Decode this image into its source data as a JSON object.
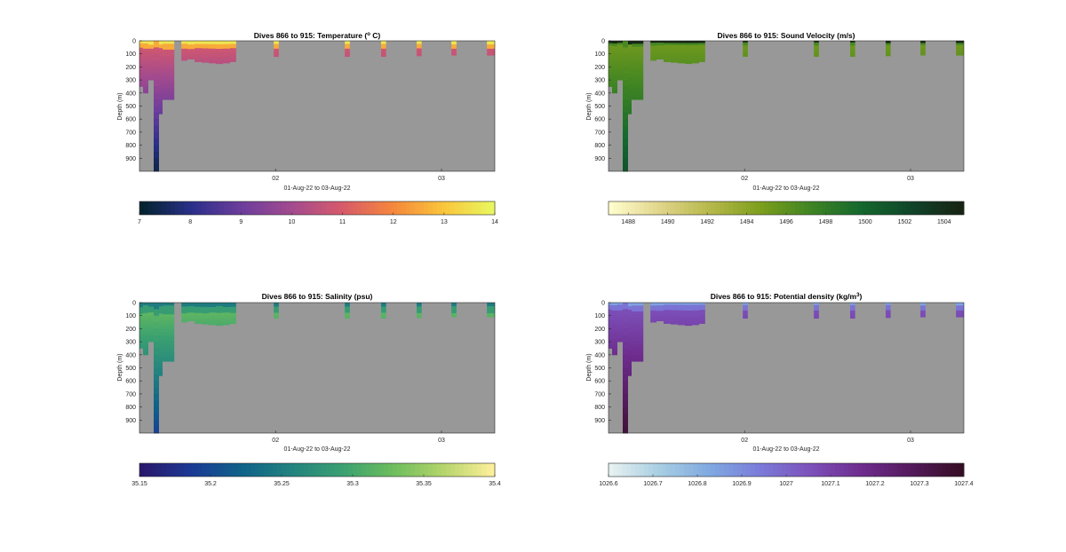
{
  "chart_data": [
    {
      "type": "heatmap",
      "title": "Dives 866 to 915: Temperature (",
      "title_sup": "o",
      "title_end": " C)",
      "xlabel": "01-Aug-22 to 03-Aug-22",
      "ylabel": "Depth (m)",
      "x_ticks": [
        "02",
        "03"
      ],
      "y_ticks": [
        0,
        100,
        200,
        300,
        400,
        500,
        600,
        700,
        800,
        900
      ],
      "ylim": [
        0,
        1000
      ],
      "colormap": "thermal",
      "colorbar_range": [
        7,
        14
      ],
      "colorbar_ticks": [
        7,
        8,
        9,
        10,
        11,
        12,
        13,
        14
      ],
      "background_color": "#989898",
      "surface_value": 13.6,
      "interior_value": 10.4,
      "deep_value": 7.5,
      "casts": [
        {
          "x": 0.05,
          "max_depth": 350,
          "surface": 13.6,
          "mid": 10.2,
          "deep": 9.8
        },
        {
          "x": 0.42,
          "max_depth": 1000,
          "surface": 13.6,
          "mid": 9.8,
          "deep": 7.4
        },
        {
          "x": 1.5,
          "max_depth": 120,
          "surface": 13.8,
          "mid": 11.0,
          "deep": 10.8
        },
        {
          "x": 2.05,
          "max_depth": 120,
          "surface": 13.5,
          "mid": 11.0,
          "deep": 10.8
        },
        {
          "x": 2.62,
          "max_depth": 110,
          "surface": 13.6,
          "mid": 11.0,
          "deep": 10.8
        }
      ]
    },
    {
      "type": "heatmap",
      "title": "Dives 866 to 915: Sound Velocity (m/s)",
      "xlabel": "01-Aug-22 to 03-Aug-22",
      "ylabel": "Depth (m)",
      "x_ticks": [
        "02",
        "03"
      ],
      "y_ticks": [
        0,
        100,
        200,
        300,
        400,
        500,
        600,
        700,
        800,
        900
      ],
      "ylim": [
        0,
        1000
      ],
      "colormap": "speed",
      "colorbar_range": [
        1487,
        1505
      ],
      "colorbar_ticks": [
        1488,
        1490,
        1492,
        1494,
        1496,
        1498,
        1500,
        1502,
        1504
      ],
      "background_color": "#989898"
    },
    {
      "type": "heatmap",
      "title": "Dives 866 to 915: Salinity (psu)",
      "xlabel": "01-Aug-22 to 03-Aug-22",
      "ylabel": "Depth (m)",
      "x_ticks": [
        "02",
        "03"
      ],
      "y_ticks": [
        0,
        100,
        200,
        300,
        400,
        500,
        600,
        700,
        800,
        900
      ],
      "ylim": [
        0,
        1000
      ],
      "colormap": "haline",
      "colorbar_range": [
        35.15,
        35.4
      ],
      "colorbar_ticks": [
        "35.15",
        "35.2",
        "35.25",
        "35.3",
        "35.35",
        "35.4"
      ],
      "background_color": "#989898"
    },
    {
      "type": "heatmap",
      "title": "Dives 866 to 915: Potential density (kg/m",
      "title_sup": "3",
      "title_end": ")",
      "xlabel": "01-Aug-22 to 03-Aug-22",
      "ylabel": "Depth (m)",
      "x_ticks": [
        "02",
        "03"
      ],
      "y_ticks": [
        0,
        100,
        200,
        300,
        400,
        500,
        600,
        700,
        800,
        900
      ],
      "ylim": [
        0,
        1000
      ],
      "colormap": "dense",
      "colorbar_range": [
        1026.6,
        1027.4
      ],
      "colorbar_ticks": [
        "1026.6",
        "1026.7",
        "1026.8",
        "1026.9",
        "1027",
        "1027.1",
        "1027.2",
        "1027.3",
        "1027.4"
      ],
      "background_color": "#989898"
    }
  ]
}
